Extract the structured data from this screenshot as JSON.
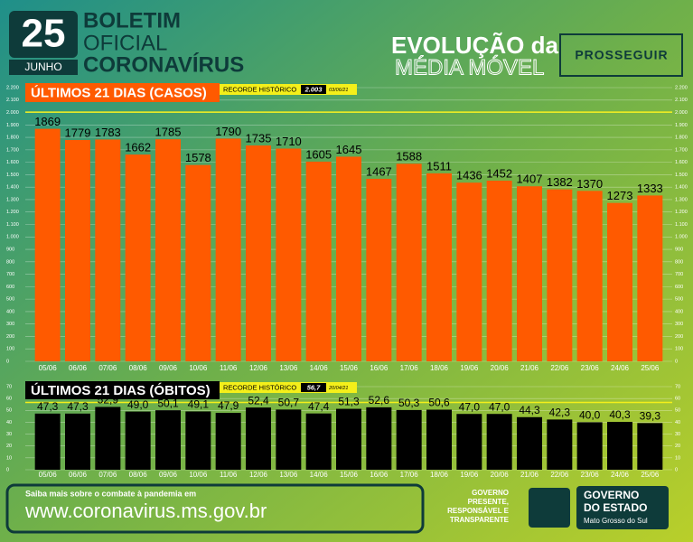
{
  "header": {
    "day": "25",
    "month": "JUNHO",
    "line1": "BOLETIM",
    "line2": "OFICIAL",
    "line3": "CORONAVÍRUS",
    "headline1": "EVOLUÇÃO da",
    "headline2": "MÉDIA MÓVEL",
    "program": "PROSSEGUIR"
  },
  "footer": {
    "intro": "Saiba mais sobre o combate à pandemia em",
    "url": "www.coronavirus.ms.gov.br",
    "motto": [
      "GOVERNO",
      "PRESENTE,",
      "RESPONSÁVEL E",
      "TRANSPARENTE"
    ],
    "gov1": "GOVERNO",
    "gov2": "DO ESTADO",
    "state": "Mato Grosso do Sul"
  },
  "chart_data": [
    {
      "type": "bar",
      "title": "ÚLTIMOS 21 DIAS (CASOS)",
      "color": "#ff5a00",
      "title_color": "#ff5a00",
      "grid": true,
      "categories": [
        "05/06",
        "06/06",
        "07/06",
        "08/06",
        "09/06",
        "10/06",
        "11/06",
        "12/06",
        "13/06",
        "14/06",
        "15/06",
        "16/06",
        "17/06",
        "18/06",
        "19/06",
        "20/06",
        "21/06",
        "22/06",
        "23/06",
        "24/06",
        "25/06"
      ],
      "values": [
        1869,
        1779,
        1783,
        1662,
        1785,
        1578,
        1790,
        1735,
        1710,
        1605,
        1645,
        1467,
        1588,
        1511,
        1436,
        1452,
        1407,
        1382,
        1370,
        1273,
        1333
      ],
      "ylim": [
        0,
        2200
      ],
      "yticks": [
        0,
        100,
        200,
        300,
        400,
        500,
        600,
        700,
        800,
        900,
        {
          "value": 1000,
          "label": "1.000"
        },
        {
          "value": 1100,
          "label": "1.100"
        },
        {
          "value": 1200,
          "label": "1.200"
        },
        {
          "value": 1300,
          "label": "1.300"
        },
        {
          "value": 1400,
          "label": "1.400"
        },
        {
          "value": 1500,
          "label": "1.500"
        },
        {
          "value": 1600,
          "label": "1.600"
        },
        {
          "value": 1700,
          "label": "1.700"
        },
        {
          "value": 1800,
          "label": "1.800"
        },
        {
          "value": 1900,
          "label": "1.900"
        },
        {
          "value": 2000,
          "label": "2.000"
        },
        {
          "value": 2100,
          "label": "2.100"
        },
        {
          "value": 2200,
          "label": "2.200"
        }
      ],
      "record": {
        "label": "RECORDE HISTÓRICO",
        "value": 2003,
        "value_label": "2.003",
        "date": "03/06/21"
      }
    },
    {
      "type": "bar",
      "title": "ÚLTIMOS 21 DIAS (ÓBITOS)",
      "color": "#000000",
      "title_color": "#000000",
      "grid": true,
      "categories": [
        "05/06",
        "06/06",
        "07/06",
        "08/06",
        "09/06",
        "10/06",
        "11/06",
        "12/06",
        "13/06",
        "14/06",
        "15/06",
        "16/06",
        "17/06",
        "18/06",
        "19/06",
        "20/06",
        "21/06",
        "22/06",
        "23/06",
        "24/06",
        "25/06"
      ],
      "values": [
        47.3,
        47.3,
        52.9,
        49.0,
        50.1,
        49.1,
        47.9,
        52.4,
        50.7,
        47.4,
        51.3,
        52.6,
        50.3,
        50.6,
        47.0,
        47.0,
        44.3,
        42.3,
        40.0,
        40.3,
        39.3
      ],
      "value_labels": [
        "47,3",
        "47,3",
        "52,9",
        "49,0",
        "50,1",
        "49,1",
        "47,9",
        "52,4",
        "50,7",
        "47,4",
        "51,3",
        "52,6",
        "50,3",
        "50,6",
        "47,0",
        "47,0",
        "44,3",
        "42,3",
        "40,0",
        "40,3",
        "39,3"
      ],
      "ylim": [
        0,
        70
      ],
      "yticks": [
        0,
        10,
        20,
        30,
        40,
        50,
        60,
        70
      ],
      "record": {
        "label": "RECORDE HISTÓRICO",
        "value": 56.7,
        "value_label": "56,7",
        "date": "20/04/21"
      }
    }
  ]
}
